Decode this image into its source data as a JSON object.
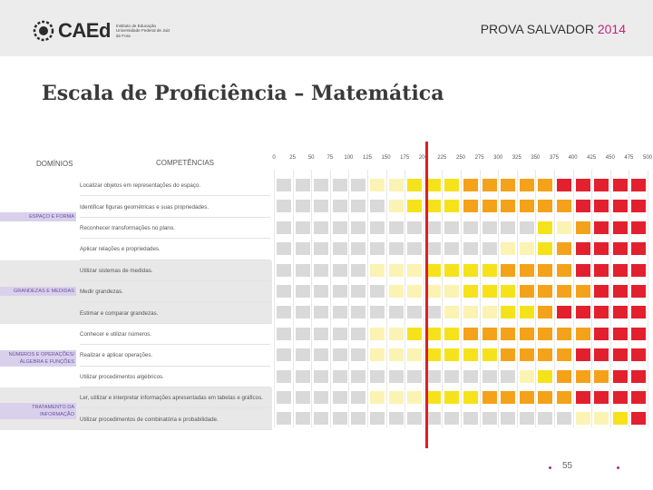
{
  "header": {
    "logo_text": "CAEd",
    "logo_sub": "Instituto de Educação Universidade Federal de Juiz de Fora",
    "doc_title": "PROVA SALVADOR",
    "doc_year": "2014"
  },
  "page_title": "Escala de Proficiência – Matemática",
  "table": {
    "col_domains": "DOMÍNIOS",
    "col_competencies": "COMPETÊNCIAS",
    "ticks": [
      "0",
      "25",
      "50",
      "75",
      "100",
      "125",
      "150",
      "175",
      "200",
      "225",
      "250",
      "275",
      "300",
      "325",
      "350",
      "375",
      "400",
      "425",
      "450",
      "475",
      "500"
    ],
    "domains": [
      {
        "label": "ESPAÇO E FORMA",
        "rows": [
          "Localizar objetos em representações do espaço.",
          "Identificar figuras geométricas e suas propriedades.",
          "Reconhecer transformações no plano.",
          "Aplicar relações e propriedades."
        ]
      },
      {
        "label": "GRANDEZAS E MEDIDAS",
        "rows": [
          "Utilizar sistemas de medidas.",
          "Medir grandezas.",
          "Estimar e comparar grandezas."
        ]
      },
      {
        "label": "NÚMEROS E OPERAÇÕES/ ÁLGEBRA E FUNÇÕES",
        "rows": [
          "Conhecer e utilizar números.",
          "Realizar e aplicar operações.",
          "Utilizar procedimentos algébricos."
        ]
      },
      {
        "label": "TRATAMENTO DA INFORMAÇÃO",
        "rows": [
          "Ler, utilizar e interpretar informações apresentadas em tabelas e gráficos.",
          "Utilizar procedimentos de combinatória e probabilidade."
        ]
      }
    ],
    "level_colors": {
      "g": "#d9d9d9",
      "ly": "#fbf3b3",
      "y": "#f5e21b",
      "o": "#f4a21a",
      "do": "#ef7d1e",
      "r": "#e3202e"
    },
    "grid": [
      "gggggllyyyooooorrrrr",
      "gggggglyyyoooooorrrr",
      "ggggggggggggggylorrr",
      "ggggggggggggllyorrrr",
      "ggggglllyyyyoooorrrr",
      "ggggggllllyyyoooorrr",
      "ggggggggglllyyorrrrr",
      "gggggllyyyooooooorrr",
      "ggggglllyyyyoooorrrr",
      "ggggggggggggglyooorr",
      "ggggglllyyyooooorrrr",
      "ggggggggggggggggllyr"
    ]
  },
  "footer": {
    "page_number": "55"
  }
}
